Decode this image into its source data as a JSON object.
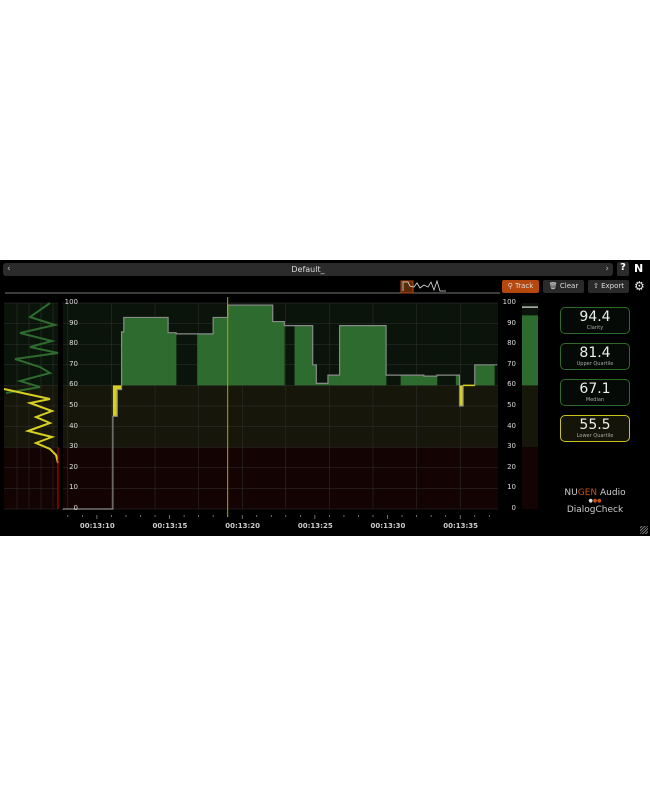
{
  "header": {
    "preset_name": "Default_",
    "help_label": "?",
    "logo_mark": "N",
    "prev_icon": "chevron-left-icon",
    "next_icon": "chevron-right-icon"
  },
  "toolbar": {
    "track_label": "Track",
    "clear_label": "Clear",
    "export_label": "Export",
    "track_color": "#b5470f"
  },
  "stats": [
    {
      "value": "94.4",
      "label": "Clarity",
      "border": "#2f6a2a"
    },
    {
      "value": "81.4",
      "label": "Upper Quartile",
      "border": "#2f6a2a"
    },
    {
      "value": "67.1",
      "label": "Median",
      "border": "#2f6a2a"
    },
    {
      "value": "55.5",
      "label": "Lower Quartile",
      "border": "#c9c21c"
    }
  ],
  "brand": {
    "nu": "NU",
    "gen": "GEN",
    "audio": " Audio",
    "product": "DialogCheck"
  },
  "colors": {
    "good": "#2e6b2e",
    "warn": "#d8d020",
    "grey_line": "#8a8a8a",
    "playhead": "#b8a300"
  },
  "meter": {
    "value": 94,
    "peak": 98
  },
  "chart_data": {
    "type": "area",
    "y_ticks": [
      "100",
      "90",
      "80",
      "70",
      "60",
      "50",
      "40",
      "30",
      "20",
      "10",
      "0"
    ],
    "ylim": [
      0,
      100
    ],
    "x_ticks": [
      "00:13:10",
      "00:13:15",
      "00:13:20",
      "00:13:25",
      "00:13:30",
      "00:13:35"
    ],
    "xlim": [
      "00:13:07.6",
      "00:13:37.6"
    ],
    "zones": [
      {
        "from": 60,
        "to": 100,
        "color": "#0a140a"
      },
      {
        "from": 30,
        "to": 60,
        "color": "#16160a"
      },
      {
        "from": 0,
        "to": 30,
        "color": "#140303"
      }
    ],
    "playhead": "00:13:19.0",
    "segments": [
      {
        "from": "00:13:07.6",
        "to": "00:13:11.1",
        "value": 0,
        "active": false
      },
      {
        "from": "00:13:11.1",
        "to": "00:13:11.4",
        "value": 45,
        "active": true
      },
      {
        "from": "00:13:11.4",
        "to": "00:13:11.7",
        "value": 58,
        "active": true
      },
      {
        "from": "00:13:11.7",
        "to": "00:13:11.85",
        "value": 86,
        "active": true
      },
      {
        "from": "00:13:11.85",
        "to": "00:13:14.9",
        "value": 93,
        "active": true
      },
      {
        "from": "00:13:14.9",
        "to": "00:13:15.45",
        "value": 85.6,
        "active": true
      },
      {
        "from": "00:13:15.45",
        "to": "00:13:16.9",
        "value": 85,
        "active": false
      },
      {
        "from": "00:13:16.9",
        "to": "00:13:18.0",
        "value": 85,
        "active": true
      },
      {
        "from": "00:13:18.0",
        "to": "00:13:19.0",
        "value": 93,
        "active": true
      },
      {
        "from": "00:13:19.0",
        "to": "00:13:22.1",
        "value": 99,
        "active": true
      },
      {
        "from": "00:13:22.1",
        "to": "00:13:22.9",
        "value": 91,
        "active": true
      },
      {
        "from": "00:13:22.9",
        "to": "00:13:23.6",
        "value": 89,
        "active": false
      },
      {
        "from": "00:13:23.6",
        "to": "00:13:24.85",
        "value": 89,
        "active": true
      },
      {
        "from": "00:13:24.85",
        "to": "00:13:25.1",
        "value": 70,
        "active": true
      },
      {
        "from": "00:13:25.1",
        "to": "00:13:25.9",
        "value": 61,
        "active": true
      },
      {
        "from": "00:13:25.9",
        "to": "00:13:26.7",
        "value": 65,
        "active": true
      },
      {
        "from": "00:13:26.7",
        "to": "00:13:29.9",
        "value": 89,
        "active": true
      },
      {
        "from": "00:13:29.9",
        "to": "00:13:30.9",
        "value": 65,
        "active": false
      },
      {
        "from": "00:13:30.9",
        "to": "00:13:32.5",
        "value": 65,
        "active": true
      },
      {
        "from": "00:13:32.5",
        "to": "00:13:33.4",
        "value": 64.5,
        "active": true
      },
      {
        "from": "00:13:33.4",
        "to": "00:13:34.7",
        "value": 65,
        "active": false
      },
      {
        "from": "00:13:34.7",
        "to": "00:13:34.95",
        "value": 65,
        "active": true
      },
      {
        "from": "00:13:34.95",
        "to": "00:13:35.2",
        "value": 50,
        "active": true
      },
      {
        "from": "00:13:35.2",
        "to": "00:13:36.0",
        "value": 60,
        "active": false
      },
      {
        "from": "00:13:36.0",
        "to": "00:13:37.35",
        "value": 70,
        "active": true
      },
      {
        "from": "00:13:37.35",
        "to": "00:13:37.55",
        "value": 70,
        "active": false
      }
    ]
  }
}
